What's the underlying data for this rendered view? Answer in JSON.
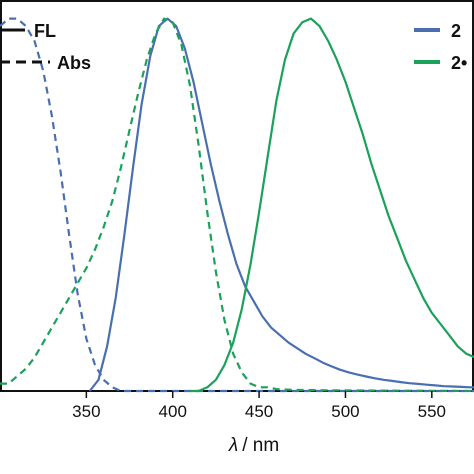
{
  "chart_data": {
    "type": "line",
    "xlabel_symbol": "λ",
    "xlabel_unit": "/ nm",
    "xlim": [
      300,
      575
    ],
    "ylim": [
      0,
      1.05
    ],
    "xticks": [
      {
        "value": 350,
        "label": "350"
      },
      {
        "value": 400,
        "label": "400"
      },
      {
        "value": 450,
        "label": "450"
      },
      {
        "value": 500,
        "label": "500"
      },
      {
        "value": 550,
        "label": "550"
      }
    ],
    "legend_style": [
      {
        "label": "FL",
        "dash": "solid"
      },
      {
        "label": "Abs",
        "dash": "dashed"
      }
    ],
    "legend_compounds": [
      {
        "label": "2",
        "color": "#4a6fb0"
      },
      {
        "label": "2•",
        "color": "#1aa15a"
      }
    ],
    "series": [
      {
        "color": "#4a6fb0",
        "dash": "dashed",
        "x": [
          300,
          305,
          310,
          315,
          320,
          325,
          330,
          335,
          340,
          345,
          350,
          355,
          360,
          365,
          370,
          375,
          380,
          400,
          450,
          500,
          575
        ],
        "y": [
          0.98,
          1.0,
          1.0,
          0.98,
          0.94,
          0.86,
          0.74,
          0.59,
          0.42,
          0.26,
          0.14,
          0.07,
          0.03,
          0.01,
          0.0,
          0.0,
          0.0,
          0.0,
          0.0,
          0.0,
          0.0
        ]
      },
      {
        "color": "#4a6fb0",
        "dash": "solid",
        "x": [
          352,
          357,
          362,
          367,
          372,
          377,
          382,
          387,
          392,
          397,
          402,
          407,
          412,
          417,
          422,
          427,
          432,
          437,
          442,
          447,
          452,
          457,
          462,
          467,
          472,
          477,
          482,
          487,
          492,
          497,
          502,
          507,
          512,
          517,
          522,
          527,
          532,
          537,
          542,
          547,
          552,
          557,
          562,
          567,
          572,
          575
        ],
        "y": [
          0.0,
          0.03,
          0.12,
          0.25,
          0.42,
          0.6,
          0.77,
          0.9,
          0.98,
          1.0,
          0.98,
          0.92,
          0.83,
          0.72,
          0.61,
          0.51,
          0.42,
          0.34,
          0.28,
          0.24,
          0.2,
          0.17,
          0.15,
          0.13,
          0.115,
          0.1,
          0.088,
          0.076,
          0.066,
          0.057,
          0.05,
          0.044,
          0.039,
          0.034,
          0.03,
          0.027,
          0.024,
          0.021,
          0.019,
          0.017,
          0.015,
          0.013,
          0.012,
          0.011,
          0.01,
          0.01
        ]
      },
      {
        "color": "#1aa15a",
        "dash": "dashed",
        "x": [
          300,
          305,
          310,
          315,
          320,
          325,
          330,
          335,
          340,
          345,
          350,
          355,
          360,
          365,
          370,
          375,
          380,
          385,
          390,
          395,
          400,
          405,
          410,
          415,
          420,
          425,
          430,
          435,
          440,
          445,
          450,
          455,
          460,
          470,
          490,
          520,
          575
        ],
        "y": [
          0.02,
          0.02,
          0.04,
          0.06,
          0.09,
          0.13,
          0.17,
          0.21,
          0.25,
          0.29,
          0.33,
          0.38,
          0.44,
          0.51,
          0.6,
          0.7,
          0.8,
          0.89,
          0.96,
          1.0,
          0.99,
          0.93,
          0.82,
          0.66,
          0.48,
          0.32,
          0.19,
          0.1,
          0.05,
          0.02,
          0.01,
          0.01,
          0.005,
          0.003,
          0.002,
          0.001,
          0.0
        ]
      },
      {
        "color": "#1aa15a",
        "dash": "solid",
        "x": [
          410,
          415,
          420,
          425,
          430,
          435,
          440,
          445,
          450,
          455,
          460,
          465,
          470,
          475,
          480,
          485,
          490,
          495,
          500,
          505,
          510,
          515,
          520,
          525,
          530,
          535,
          540,
          545,
          550,
          555,
          560,
          565,
          570,
          575
        ],
        "y": [
          0.0,
          0.0,
          0.01,
          0.03,
          0.07,
          0.13,
          0.22,
          0.34,
          0.48,
          0.63,
          0.78,
          0.89,
          0.96,
          0.99,
          1.0,
          0.98,
          0.94,
          0.89,
          0.83,
          0.76,
          0.69,
          0.61,
          0.54,
          0.47,
          0.41,
          0.35,
          0.3,
          0.25,
          0.21,
          0.18,
          0.15,
          0.12,
          0.1,
          0.09
        ]
      }
    ]
  }
}
